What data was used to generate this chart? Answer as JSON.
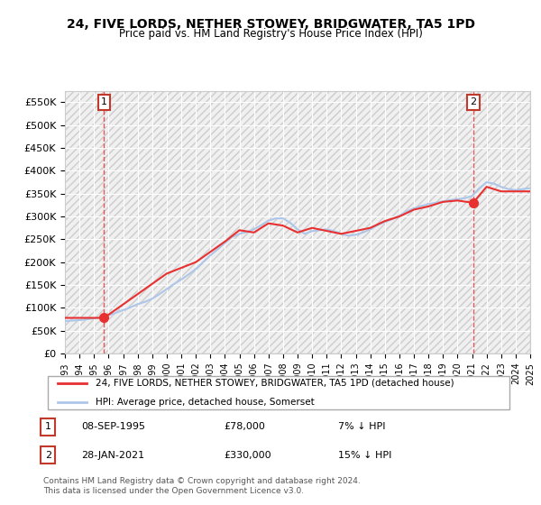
{
  "title": "24, FIVE LORDS, NETHER STOWEY, BRIDGWATER, TA5 1PD",
  "subtitle": "Price paid vs. HM Land Registry's House Price Index (HPI)",
  "ylim": [
    0,
    575000
  ],
  "yticks": [
    0,
    50000,
    100000,
    150000,
    200000,
    250000,
    300000,
    350000,
    400000,
    450000,
    500000,
    550000
  ],
  "ytick_labels": [
    "£0",
    "£50K",
    "£100K",
    "£150K",
    "£200K",
    "£250K",
    "£300K",
    "£350K",
    "£400K",
    "£450K",
    "£500K",
    "£550K"
  ],
  "xmin_year": 1993,
  "xmax_year": 2025,
  "xticks": [
    1993,
    1994,
    1995,
    1996,
    1997,
    1998,
    1999,
    2000,
    2001,
    2002,
    2003,
    2004,
    2005,
    2006,
    2007,
    2008,
    2009,
    2010,
    2011,
    2012,
    2013,
    2014,
    2015,
    2016,
    2017,
    2018,
    2019,
    2020,
    2021,
    2022,
    2023,
    2024,
    2025
  ],
  "hpi_color": "#aec6e8",
  "price_color": "#e83030",
  "marker_color": "#e83030",
  "dashed_line_color": "#e83030",
  "background_color": "#f0f0f0",
  "grid_color": "#ffffff",
  "legend_box_color": "#ffffff",
  "sale1_x": 1995.69,
  "sale1_y": 78000,
  "sale1_label": "1",
  "sale2_x": 2021.07,
  "sale2_y": 330000,
  "sale2_label": "2",
  "legend1": "24, FIVE LORDS, NETHER STOWEY, BRIDGWATER, TA5 1PD (detached house)",
  "legend2": "HPI: Average price, detached house, Somerset",
  "note1_num": "1",
  "note1_date": "08-SEP-1995",
  "note1_price": "£78,000",
  "note1_change": "7% ↓ HPI",
  "note2_num": "2",
  "note2_date": "28-JAN-2021",
  "note2_price": "£330,000",
  "note2_change": "15% ↓ HPI",
  "copyright": "Contains HM Land Registry data © Crown copyright and database right 2024.\nThis data is licensed under the Open Government Licence v3.0.",
  "hpi_x": [
    1993.0,
    1993.5,
    1994.0,
    1994.5,
    1995.0,
    1995.5,
    1996.0,
    1996.5,
    1997.0,
    1997.5,
    1998.0,
    1998.5,
    1999.0,
    1999.5,
    2000.0,
    2000.5,
    2001.0,
    2001.5,
    2002.0,
    2002.5,
    2003.0,
    2003.5,
    2004.0,
    2004.5,
    2005.0,
    2005.5,
    2006.0,
    2006.5,
    2007.0,
    2007.5,
    2008.0,
    2008.5,
    2009.0,
    2009.5,
    2010.0,
    2010.5,
    2011.0,
    2011.5,
    2012.0,
    2012.5,
    2013.0,
    2013.5,
    2014.0,
    2014.5,
    2015.0,
    2015.5,
    2016.0,
    2016.5,
    2017.0,
    2017.5,
    2018.0,
    2018.5,
    2019.0,
    2019.5,
    2020.0,
    2020.5,
    2021.0,
    2021.5,
    2022.0,
    2022.5,
    2023.0,
    2023.5,
    2024.0,
    2024.5,
    2025.0
  ],
  "hpi_y": [
    71000,
    72000,
    73000,
    75000,
    77000,
    80000,
    84000,
    89000,
    95000,
    101000,
    108000,
    113000,
    120000,
    130000,
    141000,
    152000,
    162000,
    173000,
    185000,
    200000,
    215000,
    228000,
    242000,
    255000,
    262000,
    266000,
    272000,
    281000,
    291000,
    296000,
    296000,
    286000,
    272000,
    262000,
    268000,
    270000,
    272000,
    268000,
    262000,
    258000,
    260000,
    265000,
    272000,
    281000,
    288000,
    294000,
    302000,
    311000,
    318000,
    323000,
    327000,
    330000,
    333000,
    336000,
    338000,
    340000,
    345000,
    362000,
    375000,
    372000,
    365000,
    360000,
    358000,
    360000,
    362000
  ],
  "price_x": [
    1993.0,
    1995.69,
    2000.0,
    2002.0,
    2004.0,
    2005.0,
    2006.0,
    2007.0,
    2008.0,
    2009.0,
    2010.0,
    2012.0,
    2014.0,
    2015.0,
    2016.0,
    2017.0,
    2018.0,
    2019.0,
    2020.0,
    2021.07,
    2022.0,
    2023.0,
    2025.0
  ],
  "price_y": [
    78000,
    78000,
    175000,
    200000,
    245000,
    270000,
    265000,
    285000,
    280000,
    265000,
    275000,
    262000,
    275000,
    290000,
    300000,
    315000,
    322000,
    332000,
    335000,
    330000,
    365000,
    355000,
    355000
  ]
}
